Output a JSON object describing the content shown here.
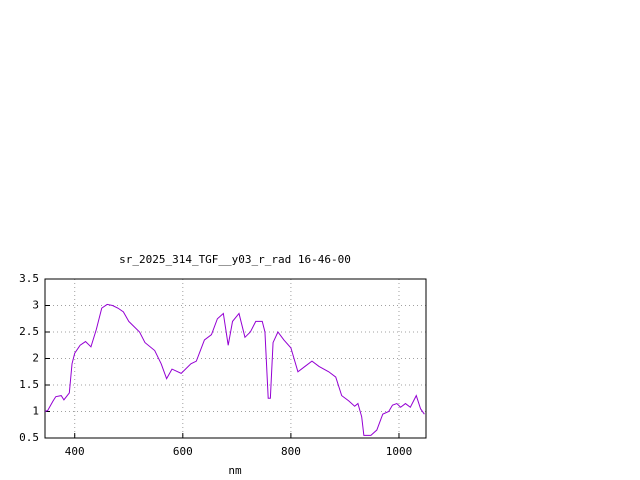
{
  "chart_data": {
    "type": "line",
    "title": "sr_2025_314_TGF__y03_r_rad 16-46-00",
    "xlabel": "nm",
    "x": [
      345,
      350,
      360,
      365,
      375,
      380,
      390,
      395,
      400,
      410,
      420,
      430,
      440,
      450,
      460,
      470,
      480,
      490,
      500,
      520,
      530,
      548,
      560,
      570,
      580,
      597,
      615,
      625,
      640,
      653,
      664,
      675,
      684,
      692,
      704,
      715,
      725,
      735,
      747,
      752,
      758,
      762,
      767,
      776,
      787,
      800,
      813,
      826,
      839,
      852,
      870,
      883,
      894,
      907,
      918,
      924,
      931,
      935,
      948,
      959,
      970,
      981,
      988,
      996,
      1003,
      1012,
      1021,
      1032,
      1040,
      1047
    ],
    "series": [
      {
        "color": "#9400d3",
        "values": [
          1.0,
          1.02,
          1.2,
          1.28,
          1.3,
          1.22,
          1.35,
          1.9,
          2.1,
          2.25,
          2.32,
          2.22,
          2.55,
          2.95,
          3.02,
          3.0,
          2.95,
          2.88,
          2.7,
          2.5,
          2.3,
          2.15,
          1.9,
          1.62,
          1.8,
          1.72,
          1.9,
          1.95,
          2.35,
          2.45,
          2.75,
          2.85,
          2.25,
          2.7,
          2.85,
          2.4,
          2.5,
          2.7,
          2.7,
          2.5,
          1.25,
          1.25,
          2.3,
          2.5,
          2.35,
          2.2,
          1.75,
          1.85,
          1.95,
          1.85,
          1.75,
          1.65,
          1.3,
          1.2,
          1.1,
          1.15,
          0.9,
          0.55,
          0.55,
          0.65,
          0.95,
          1.0,
          1.12,
          1.15,
          1.08,
          1.15,
          1.08,
          1.3,
          1.05,
          0.95
        ]
      }
    ],
    "xlim": [
      345,
      1050
    ],
    "xticks": [
      400,
      600,
      800,
      1000
    ],
    "ylim": [
      0.5,
      3.5
    ],
    "yticks": [
      0.5,
      1,
      1.5,
      2,
      2.5,
      3,
      3.5
    ],
    "grid": true
  }
}
